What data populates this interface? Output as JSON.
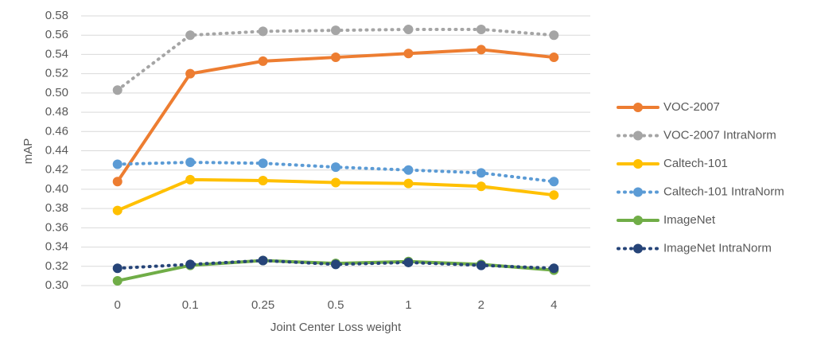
{
  "chart_data": {
    "type": "line",
    "x_label": "Joint Center Loss weight",
    "y_label": "mAP",
    "categories": [
      "0",
      "0.1",
      "0.25",
      "0.5",
      "1",
      "2",
      "4"
    ],
    "ylim": [
      0.3,
      0.58
    ],
    "yticks": [
      {
        "value": 0.3,
        "label": "0.30"
      },
      0.32,
      0.34,
      0.36,
      0.38,
      {
        "value": 0.4,
        "label": "0.40"
      },
      0.42,
      0.44,
      0.46,
      0.48,
      {
        "value": 0.5,
        "label": "0.50"
      },
      0.52,
      0.54,
      0.56,
      0.58
    ],
    "grid": true,
    "legend": "right",
    "series": [
      {
        "name": "VOC-2007",
        "color": "#ed7d31",
        "style": "solid",
        "values": [
          0.408,
          0.52,
          0.533,
          0.537,
          0.541,
          0.545,
          0.537
        ]
      },
      {
        "name": "VOC-2007 IntraNorm",
        "color": "#a5a5a5",
        "style": "dotted",
        "values": [
          0.503,
          0.56,
          0.564,
          0.565,
          0.566,
          0.566,
          0.56
        ]
      },
      {
        "name": "Caltech-101",
        "color": "#ffc000",
        "style": "solid",
        "values": [
          0.378,
          0.41,
          0.409,
          0.407,
          0.406,
          0.403,
          0.394
        ]
      },
      {
        "name": "Caltech-101 IntraNorm",
        "color": "#5b9bd5",
        "style": "dotted",
        "values": [
          0.426,
          0.428,
          0.427,
          0.423,
          0.42,
          0.417,
          0.408
        ]
      },
      {
        "name": "ImageNet",
        "color": "#70ad47",
        "style": "solid",
        "values": [
          0.305,
          0.321,
          0.326,
          0.323,
          0.325,
          0.322,
          0.316
        ]
      },
      {
        "name": "ImageNet IntraNorm",
        "color": "#264478",
        "style": "dotted",
        "values": [
          0.318,
          0.322,
          0.326,
          0.322,
          0.324,
          0.321,
          0.318
        ]
      }
    ]
  }
}
